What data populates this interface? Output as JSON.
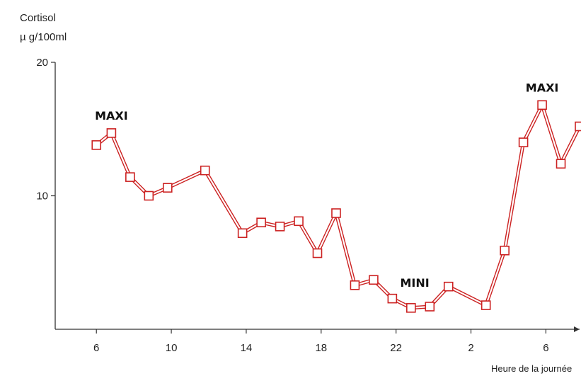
{
  "chart_data": {
    "type": "line",
    "ylabel_line1": "Cortisol",
    "ylabel_line2": "µ g/100ml",
    "xlabel": "Heure de la journée",
    "y_ticks": [
      10,
      20
    ],
    "x_ticks": [
      "6",
      "10",
      "14",
      "18",
      "22",
      "2",
      "6"
    ],
    "x_tick_positions": [
      6,
      10,
      14,
      18,
      22,
      26,
      30
    ],
    "xlim": [
      3.8,
      31.8
    ],
    "ylim": [
      0,
      20
    ],
    "grid": false,
    "series_color": "#cc2222",
    "x": [
      6,
      6.8,
      7.8,
      8.8,
      9.8,
      11.8,
      13.8,
      14.8,
      15.8,
      16.8,
      17.8,
      18.8,
      19.8,
      20.8,
      21.8,
      22.8,
      23.8,
      24.8,
      26.8,
      27.8,
      28.8,
      29.8,
      30.8,
      31.8
    ],
    "y": [
      13.8,
      14.7,
      11.4,
      10.0,
      10.6,
      11.9,
      7.2,
      8.0,
      7.7,
      8.1,
      5.7,
      8.7,
      3.3,
      3.7,
      2.3,
      1.6,
      1.7,
      3.2,
      1.8,
      5.9,
      14.0,
      16.8,
      12.4,
      15.2
    ],
    "annotations": [
      {
        "text": "MAXI",
        "x": 6.8,
        "y": 14.7
      },
      {
        "text": "MINI",
        "x": 23.0,
        "y": 1.6
      },
      {
        "text": "MAXI",
        "x": 29.8,
        "y": 16.8
      }
    ]
  }
}
